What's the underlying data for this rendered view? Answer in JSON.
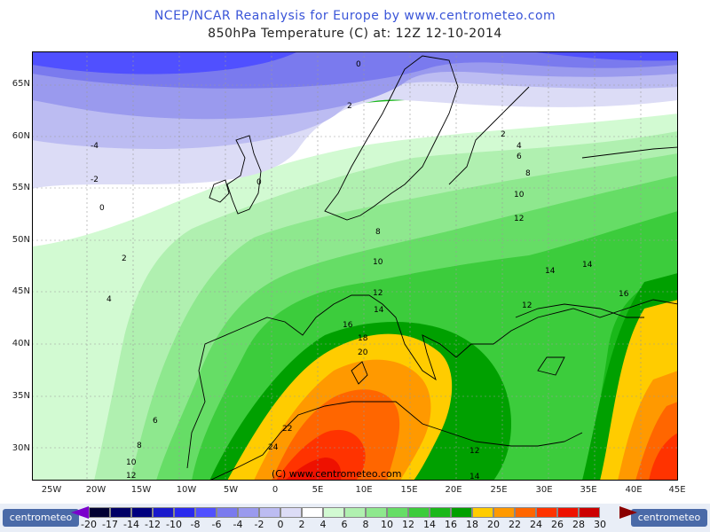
{
  "title": "NCEP/NCAR Reanalysis for Europe by www.centrometeo.com",
  "subtitle": "850hPa Temperature (C) at: 12Z 12-10-2014",
  "copyright": "(C) www.centrometeo.com",
  "logo_text": "centrometeo",
  "lat_labels": [
    "65N",
    "60N",
    "55N",
    "50N",
    "45N",
    "40N",
    "35N",
    "30N"
  ],
  "lon_labels": [
    "25W",
    "20W",
    "15W",
    "10W",
    "5W",
    "0",
    "5E",
    "10E",
    "15E",
    "20E",
    "25E",
    "30E",
    "35E",
    "40E",
    "45E"
  ],
  "legend": {
    "levels": [
      "-20",
      "-17",
      "-14",
      "-12",
      "-10",
      "-8",
      "-6",
      "-4",
      "-2",
      "0",
      "2",
      "4",
      "6",
      "8",
      "10",
      "12",
      "14",
      "16",
      "18",
      "20",
      "22",
      "24",
      "26",
      "28",
      "30"
    ],
    "colors": [
      "#000033",
      "#000066",
      "#00007f",
      "#1a1acc",
      "#2a2aee",
      "#5050ff",
      "#7a7aee",
      "#9a9aee",
      "#bcbcf2",
      "#dcdcf6",
      "#ffffff",
      "#d2fad2",
      "#b0f0b0",
      "#8ee88e",
      "#66dd66",
      "#3ccc3c",
      "#1ab81a",
      "#00a000",
      "#ffcc00",
      "#ff9900",
      "#ff6600",
      "#ff3300",
      "#ee1100",
      "#cc0000",
      "#a00000"
    ]
  },
  "contour_labels": [
    {
      "text": "0"
    },
    {
      "text": "2"
    },
    {
      "text": "-4"
    },
    {
      "text": "-2"
    },
    {
      "text": "0"
    },
    {
      "text": "0"
    },
    {
      "text": "2"
    },
    {
      "text": "4"
    },
    {
      "text": "6"
    },
    {
      "text": "8"
    },
    {
      "text": "10"
    },
    {
      "text": "12"
    },
    {
      "text": "2"
    },
    {
      "text": "4"
    },
    {
      "text": "6"
    },
    {
      "text": "8"
    },
    {
      "text": "10"
    },
    {
      "text": "12"
    },
    {
      "text": "8"
    },
    {
      "text": "10"
    },
    {
      "text": "12"
    },
    {
      "text": "14"
    },
    {
      "text": "14"
    },
    {
      "text": "14"
    },
    {
      "text": "12"
    },
    {
      "text": "16"
    },
    {
      "text": "16"
    },
    {
      "text": "18"
    },
    {
      "text": "20"
    },
    {
      "text": "22"
    },
    {
      "text": "24"
    },
    {
      "text": "12"
    },
    {
      "text": "14"
    }
  ]
}
